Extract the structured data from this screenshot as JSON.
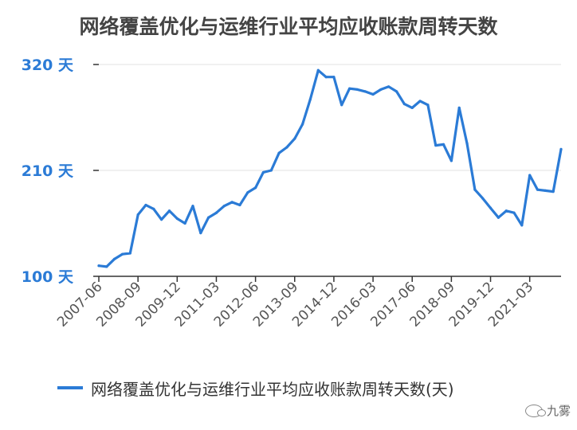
{
  "chart_data": {
    "type": "line",
    "title": "网络覆盖优化与运维行业平均应收账款周转天数",
    "ylim": [
      100,
      320
    ],
    "yticks": [
      {
        "value": 100,
        "label": "100 天"
      },
      {
        "value": 210,
        "label": "210 天"
      },
      {
        "value": 320,
        "label": "320 天"
      }
    ],
    "x_tick_labels": [
      "2007-06",
      "2008-09",
      "2009-12",
      "2011-03",
      "2012-06",
      "2013-09",
      "2014-12",
      "2016-03",
      "2017-06",
      "2018-09",
      "2019-12",
      "2021-03"
    ],
    "x_tick_every": 5,
    "grid": true,
    "legend_position": "bottom-left",
    "series": [
      {
        "name": "网络覆盖优化与运维行业平均应收账款周转天数(天)",
        "color": "#2b7bd6",
        "x": [
          "2007-06",
          "2007-09",
          "2007-12",
          "2008-03",
          "2008-06",
          "2008-09",
          "2008-12",
          "2009-03",
          "2009-06",
          "2009-09",
          "2009-12",
          "2010-03",
          "2010-06",
          "2010-09",
          "2010-12",
          "2011-03",
          "2011-06",
          "2011-09",
          "2011-12",
          "2012-03",
          "2012-06",
          "2012-09",
          "2012-12",
          "2013-03",
          "2013-06",
          "2013-09",
          "2013-12",
          "2014-03",
          "2014-06",
          "2014-09",
          "2014-12",
          "2015-03",
          "2015-06",
          "2015-09",
          "2015-12",
          "2016-03",
          "2016-06",
          "2016-09",
          "2016-12",
          "2017-03",
          "2017-06",
          "2017-09",
          "2017-12",
          "2018-03",
          "2018-06",
          "2018-09",
          "2018-12",
          "2019-03",
          "2019-06",
          "2019-09",
          "2019-12",
          "2020-03",
          "2020-06",
          "2020-09",
          "2020-12",
          "2021-03",
          "2021-06",
          "2021-09",
          "2021-12",
          "2022-03"
        ],
        "values": [
          111,
          110,
          118,
          123,
          124,
          164,
          174,
          170,
          159,
          168,
          160,
          155,
          173,
          145,
          161,
          166,
          173,
          177,
          174,
          187,
          192,
          208,
          210,
          228,
          234,
          243,
          258,
          284,
          314,
          307,
          307,
          278,
          295,
          294,
          292,
          289,
          294,
          297,
          292,
          279,
          275,
          282,
          278,
          236,
          237,
          220,
          275,
          238,
          190,
          181,
          171,
          161,
          168,
          166,
          153,
          205,
          190,
          189,
          188,
          232
        ]
      }
    ]
  },
  "watermark": {
    "text": "九雾",
    "icon": "wechat-icon"
  }
}
